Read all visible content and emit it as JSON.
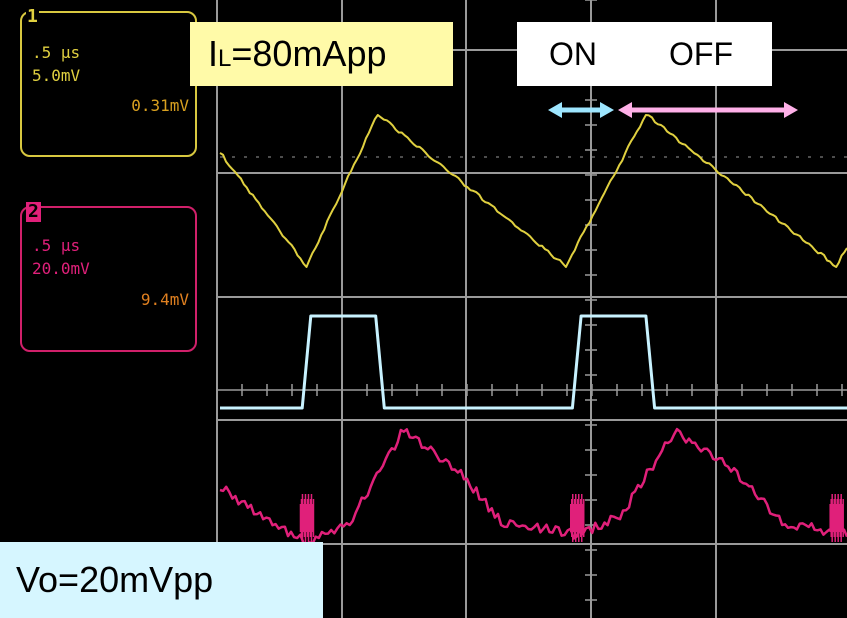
{
  "channel1": {
    "number": "1",
    "timebase": ".5 µs",
    "scale": "5.0mV",
    "amplitude": "0.31mV",
    "color": "#e0d040"
  },
  "channel2": {
    "number": "2",
    "timebase": ".5 µs",
    "scale": "20.0mV",
    "amplitude": "9.4mV",
    "color": "#e0207a"
  },
  "labels": {
    "il_main": "I",
    "il_sub": "L",
    "il_rest": "=80mApp",
    "on": "ON",
    "off": "OFF",
    "vo": "Vo=20mVpp"
  },
  "colors": {
    "grid": "#9a9a9a",
    "gate": "#c8f2ff",
    "on_arrow": "#9ee6ff",
    "off_arrow": "#ffb0e8"
  },
  "chart_data": {
    "type": "line",
    "x_unit": "µs",
    "x_range": [
      0,
      2.9
    ],
    "series": [
      {
        "name": "I",
        "unit": "mA",
        "color": "#e0d040",
        "x": [
          0,
          0.4,
          0.73,
          1.6,
          1.97,
          2.85,
          2.9
        ],
        "y": [
          20,
          -40,
          40,
          -40,
          40,
          -40,
          -30
        ]
      },
      {
        "name": "ON/OFF",
        "color": "#c8f2ff",
        "x": [
          0,
          0.38,
          0.42,
          0.72,
          0.76,
          1.63,
          1.67,
          1.97,
          2.01,
          2.9
        ],
        "y": [
          0,
          0,
          1,
          1,
          0,
          0,
          1,
          1,
          0,
          0
        ]
      },
      {
        "name": "Vo",
        "unit": "mV",
        "color": "#e0207a",
        "x": [
          0,
          0.2,
          0.4,
          0.6,
          0.85,
          1.1,
          1.3,
          1.65,
          1.85,
          2.1,
          2.35,
          2.6,
          2.9
        ],
        "y": [
          0,
          -5,
          -9.5,
          -6,
          10,
          3,
          -6,
          -8,
          -5,
          9.5,
          4,
          -6,
          -8
        ]
      }
    ]
  }
}
